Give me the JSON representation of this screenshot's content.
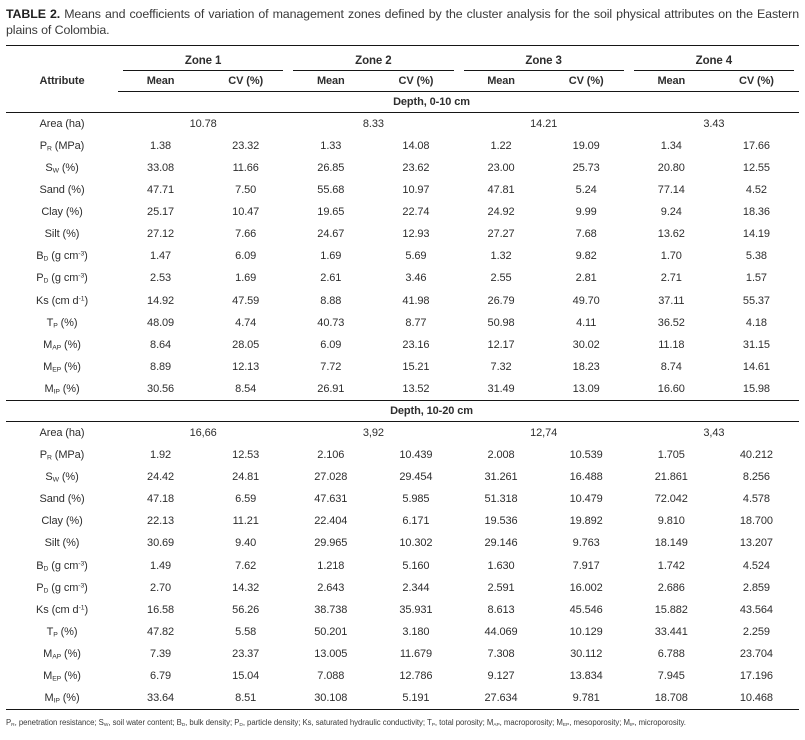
{
  "caption": {
    "label": "TABLE 2.",
    "text": " Means and coefficients of variation of management zones defined by the cluster analysis for the soil physical attributes on the Eastern plains of Colombia."
  },
  "table": {
    "attribute_header": "Attribute",
    "zones": [
      "Zone 1",
      "Zone 2",
      "Zone 3",
      "Zone 4"
    ],
    "subheaders": [
      "Mean",
      "CV (%)"
    ],
    "sections": [
      {
        "depth_label": "Depth, 0-10 cm",
        "area_row": {
          "label": "Area (ha)",
          "values": [
            "10.78",
            "8.33",
            "14.21",
            "3.43"
          ]
        },
        "rows": [
          {
            "label": "P~R~ (MPa)",
            "values": [
              "1.38",
              "23.32",
              "1.33",
              "14.08",
              "1.22",
              "19.09",
              "1.34",
              "17.66"
            ]
          },
          {
            "label": "S~W~ (%)",
            "values": [
              "33.08",
              "11.66",
              "26.85",
              "23.62",
              "23.00",
              "25.73",
              "20.80",
              "12.55"
            ]
          },
          {
            "label": "Sand (%)",
            "values": [
              "47.71",
              "7.50",
              "55.68",
              "10.97",
              "47.81",
              "5.24",
              "77.14",
              "4.52"
            ]
          },
          {
            "label": "Clay (%)",
            "values": [
              "25.17",
              "10.47",
              "19.65",
              "22.74",
              "24.92",
              "9.99",
              "9.24",
              "18.36"
            ]
          },
          {
            "label": "Silt (%)",
            "values": [
              "27.12",
              "7.66",
              "24.67",
              "12.93",
              "27.27",
              "7.68",
              "13.62",
              "14.19"
            ]
          },
          {
            "label": "B~D~ (g cm^-3^)",
            "values": [
              "1.47",
              "6.09",
              "1.69",
              "5.69",
              "1.32",
              "9.82",
              "1.70",
              "5.38"
            ]
          },
          {
            "label": "P~D~ (g cm^-3^)",
            "values": [
              "2.53",
              "1.69",
              "2.61",
              "3.46",
              "2.55",
              "2.81",
              "2.71",
              "1.57"
            ]
          },
          {
            "label": "Ks (cm d^-1^)",
            "values": [
              "14.92",
              "47.59",
              "8.88",
              "41.98",
              "26.79",
              "49.70",
              "37.11",
              "55.37"
            ]
          },
          {
            "label": "T~P~ (%)",
            "values": [
              "48.09",
              "4.74",
              "40.73",
              "8.77",
              "50.98",
              "4.11",
              "36.52",
              "4.18"
            ]
          },
          {
            "label": "M~AP~ (%)",
            "values": [
              "8.64",
              "28.05",
              "6.09",
              "23.16",
              "12.17",
              "30.02",
              "11.18",
              "31.15"
            ]
          },
          {
            "label": "M~EP~ (%)",
            "values": [
              "8.89",
              "12.13",
              "7.72",
              "15.21",
              "7.32",
              "18.23",
              "8.74",
              "14.61"
            ]
          },
          {
            "label": "M~IP~ (%)",
            "values": [
              "30.56",
              "8.54",
              "26.91",
              "13.52",
              "31.49",
              "13.09",
              "16.60",
              "15.98"
            ]
          }
        ]
      },
      {
        "depth_label": "Depth, 10-20 cm",
        "area_row": {
          "label": "Area (ha)",
          "values": [
            "16,66",
            "3,92",
            "12,74",
            "3,43"
          ]
        },
        "rows": [
          {
            "label": "P~R~ (MPa)",
            "values": [
              "1.92",
              "12.53",
              "2.106",
              "10.439",
              "2.008",
              "10.539",
              "1.705",
              "40.212"
            ]
          },
          {
            "label": "S~W~ (%)",
            "values": [
              "24.42",
              "24.81",
              "27.028",
              "29.454",
              "31.261",
              "16.488",
              "21.861",
              "8.256"
            ]
          },
          {
            "label": "Sand (%)",
            "values": [
              "47.18",
              "6.59",
              "47.631",
              "5.985",
              "51.318",
              "10.479",
              "72.042",
              "4.578"
            ]
          },
          {
            "label": "Clay (%)",
            "values": [
              "22.13",
              "11.21",
              "22.404",
              "6.171",
              "19.536",
              "19.892",
              "9.810",
              "18.700"
            ]
          },
          {
            "label": "Silt (%)",
            "values": [
              "30.69",
              "9.40",
              "29.965",
              "10.302",
              "29.146",
              "9.763",
              "18.149",
              "13.207"
            ]
          },
          {
            "label": "B~D~ (g cm^-3^)",
            "values": [
              "1.49",
              "7.62",
              "1.218",
              "5.160",
              "1.630",
              "7.917",
              "1.742",
              "4.524"
            ]
          },
          {
            "label": "P~D~ (g cm^-3^)",
            "values": [
              "2.70",
              "14.32",
              "2.643",
              "2.344",
              "2.591",
              "16.002",
              "2.686",
              "2.859"
            ]
          },
          {
            "label": "Ks (cm d^-1^)",
            "values": [
              "16.58",
              "56.26",
              "38.738",
              "35.931",
              "8.613",
              "45.546",
              "15.882",
              "43.564"
            ]
          },
          {
            "label": "T~P~ (%)",
            "values": [
              "47.82",
              "5.58",
              "50.201",
              "3.180",
              "44.069",
              "10.129",
              "33.441",
              "2.259"
            ]
          },
          {
            "label": "M~AP~ (%)",
            "values": [
              "7.39",
              "23.37",
              "13.005",
              "11.679",
              "7.308",
              "30.112",
              "6.788",
              "23.704"
            ]
          },
          {
            "label": "M~EP~ (%)",
            "values": [
              "6.79",
              "15.04",
              "7.088",
              "12.786",
              "9.127",
              "13.834",
              "7.945",
              "17.196"
            ]
          },
          {
            "label": "M~IP~ (%)",
            "values": [
              "33.64",
              "8.51",
              "30.108",
              "5.191",
              "27.634",
              "9.781",
              "18.708",
              "10.468"
            ]
          }
        ]
      }
    ]
  },
  "footnote": "P~R~, penetration resistance; S~W~, soil water content; B~D~, bulk density; P~D~, particle density; Ks, saturated hydraulic conductivity; T~P~, total porosity; M~AP~, macroporosity; M~EP~, mesoporosity; M~IP~, microporosity.",
  "colors": {
    "text": "#2e2e2e",
    "rule": "#161616",
    "background": "#ffffff"
  }
}
